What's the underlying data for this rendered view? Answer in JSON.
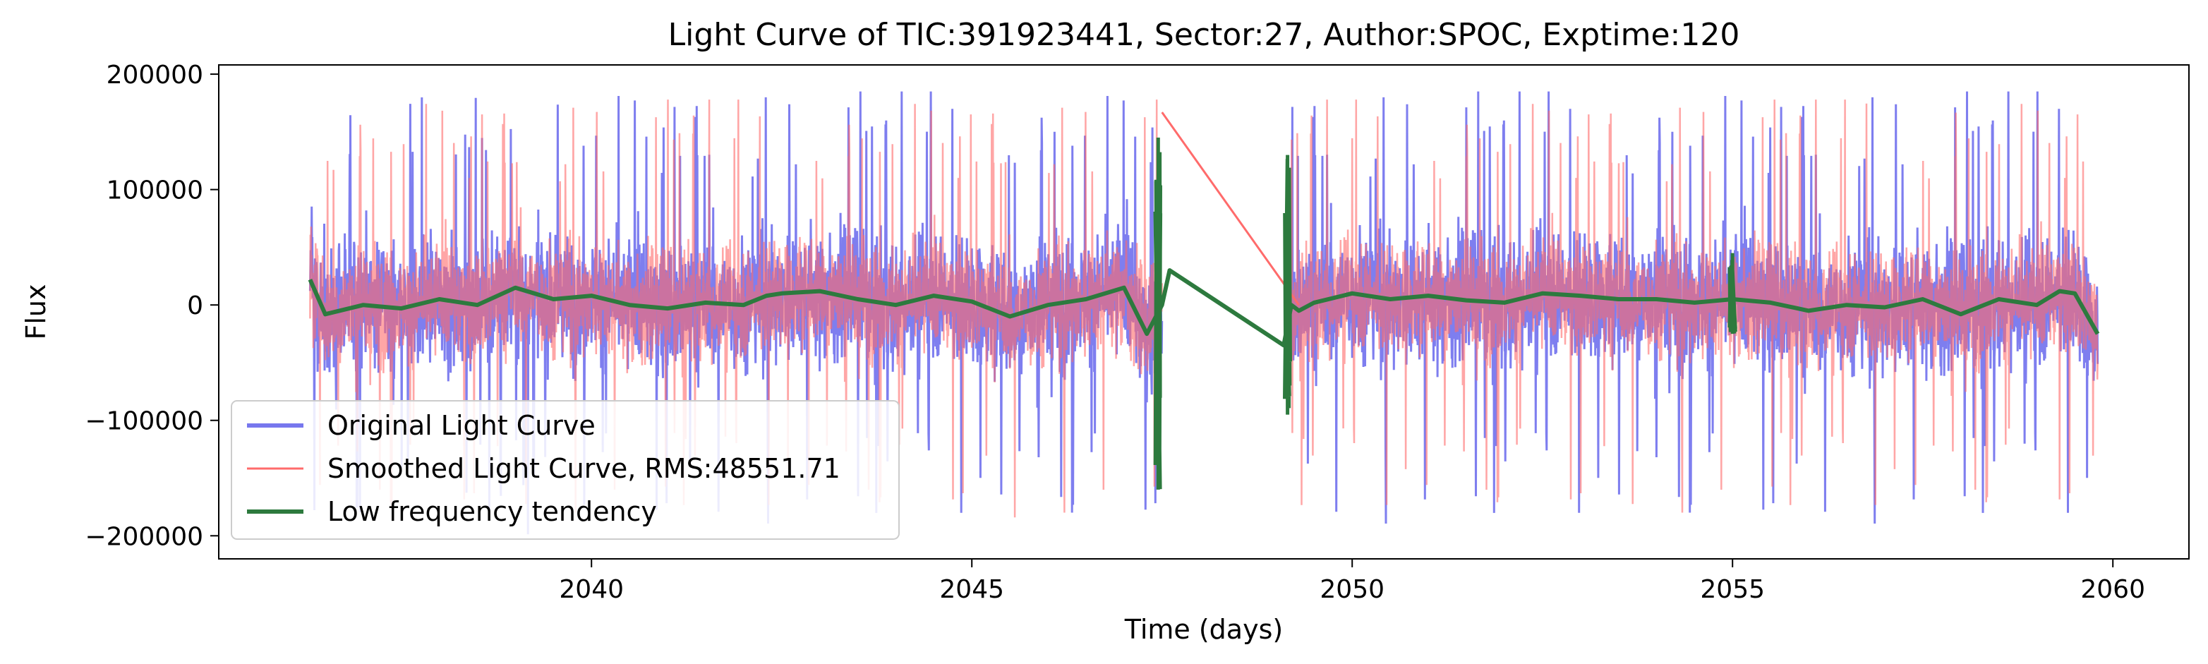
{
  "chart_data": {
    "type": "line",
    "title": "Light Curve of TIC:391923441, Sector:27, Author:SPOC, Exptime:120",
    "xlabel": "Time (days)",
    "ylabel": "Flux",
    "xlim": [
      2035.1,
      2061.0
    ],
    "ylim": [
      -220000,
      208000
    ],
    "x_ticks": [
      2040,
      2045,
      2050,
      2055,
      2060
    ],
    "x_tick_labels": [
      "2040",
      "2045",
      "2050",
      "2055",
      "2060"
    ],
    "y_ticks": [
      -200000,
      -100000,
      0,
      100000,
      200000
    ],
    "y_tick_labels": [
      "−200000",
      "−100000",
      "0",
      "100000",
      "200000"
    ],
    "grid": false,
    "legend_position": "lower-left",
    "gap": [
      2047.5,
      2049.2
    ],
    "series": [
      {
        "name": "Original Light Curve",
        "color": "#7777ee",
        "x_range": [
          2036.3,
          2059.8
        ],
        "segments": [
          [
            2036.3,
            2047.5
          ],
          [
            2049.2,
            2059.8
          ]
        ],
        "typical_amplitude": 70000,
        "peak_range": [
          -200000,
          185000
        ],
        "samples": [
          {
            "x": 2036.3,
            "y": 120000
          },
          {
            "x": 2038.8,
            "y": 160000
          },
          {
            "x": 2042.9,
            "y": -175000
          },
          {
            "x": 2044.6,
            "y": 175000
          },
          {
            "x": 2046.2,
            "y": -200000
          },
          {
            "x": 2047.3,
            "y": -197000
          },
          {
            "x": 2051.5,
            "y": 183000
          },
          {
            "x": 2054.5,
            "y": -145000
          },
          {
            "x": 2056.9,
            "y": 185000
          },
          {
            "x": 2057.5,
            "y": -190000
          },
          {
            "x": 2058.9,
            "y": 180000
          },
          {
            "x": 2059.8,
            "y": 50000
          }
        ]
      },
      {
        "name": "Smoothed Light Curve, RMS:48551.71",
        "color": "#ff6b6b",
        "x_range": [
          2036.3,
          2059.8
        ],
        "bridge": [
          [
            2047.5,
            167000
          ],
          [
            2049.3,
            0
          ]
        ],
        "typical_amplitude": 60000,
        "peak_range": [
          -190000,
          178000
        ],
        "samples": [
          {
            "x": 2036.3,
            "y": 80000
          },
          {
            "x": 2044.6,
            "y": 178000
          },
          {
            "x": 2047.5,
            "y": 167000
          },
          {
            "x": 2049.3,
            "y": 0
          },
          {
            "x": 2059.8,
            "y": 60000
          }
        ]
      },
      {
        "name": "Low frequency tendency",
        "color": "#2d7a3e",
        "x": [
          2036.3,
          2036.5,
          2037.0,
          2037.5,
          2038.0,
          2038.5,
          2039.0,
          2039.5,
          2040.0,
          2040.5,
          2041.0,
          2041.5,
          2042.0,
          2042.3,
          2042.5,
          2043.0,
          2043.5,
          2044.0,
          2044.5,
          2045.0,
          2045.5,
          2046.0,
          2046.5,
          2047.0,
          2047.3,
          2047.5,
          2047.6,
          2049.1,
          2049.2,
          2049.3,
          2049.5,
          2050.0,
          2050.5,
          2051.0,
          2051.5,
          2052.0,
          2052.5,
          2053.0,
          2053.5,
          2054.0,
          2054.5,
          2055.0,
          2055.5,
          2056.0,
          2056.5,
          2057.0,
          2057.5,
          2058.0,
          2058.5,
          2059.0,
          2059.3,
          2059.5,
          2059.8
        ],
        "y": [
          22000,
          -8000,
          0,
          -3000,
          5000,
          0,
          15000,
          5000,
          8000,
          0,
          -3000,
          2000,
          0,
          8000,
          10000,
          12000,
          5000,
          0,
          8000,
          3000,
          -10000,
          0,
          5000,
          15000,
          -25000,
          0,
          30000,
          -35000,
          0,
          -5000,
          2000,
          10000,
          5000,
          8000,
          4000,
          2000,
          10000,
          8000,
          5000,
          5000,
          2000,
          5000,
          2000,
          -5000,
          0,
          -2000,
          5000,
          -8000,
          5000,
          0,
          12000,
          10000,
          -25000
        ],
        "spikes": [
          {
            "x": 2047.45,
            "y_min": -160000,
            "y_max": 145000
          },
          {
            "x": 2049.15,
            "y_min": -95000,
            "y_max": 130000
          },
          {
            "x": 2055.0,
            "y_min": -25000,
            "y_max": 45000
          }
        ]
      }
    ]
  }
}
